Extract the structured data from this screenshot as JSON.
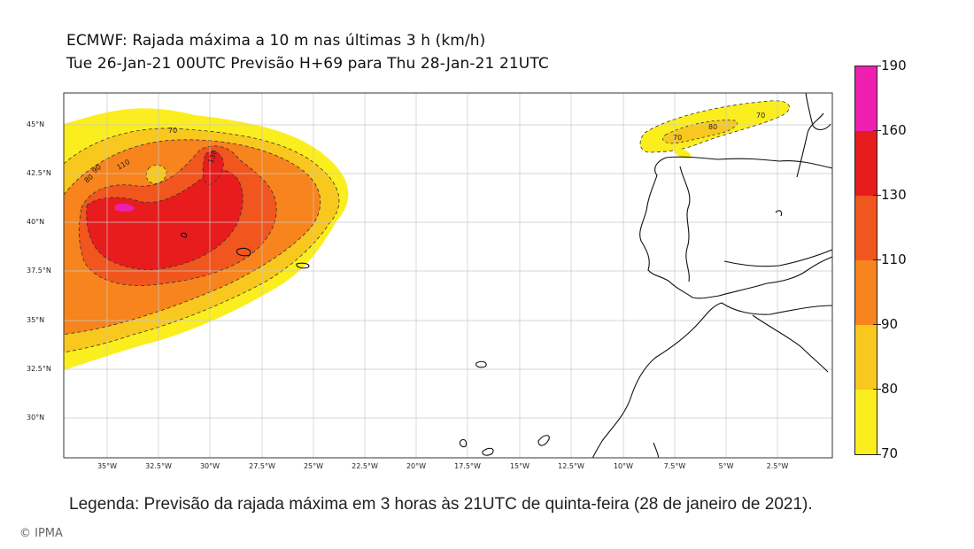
{
  "title": {
    "line1": "ECMWF: Rajada máxima a 10 m nas últimas 3 h (km/h)",
    "line2": "Tue 26-Jan-21 00UTC Previsão H+69 para Thu 28-Jan-21 21UTC"
  },
  "map": {
    "lat_labels": [
      "45°N",
      "42.5°N",
      "40°N",
      "37.5°N",
      "35°N",
      "32.5°N",
      "30°N"
    ],
    "lon_labels": [
      "35°W",
      "32.5°W",
      "30°W",
      "27.5°W",
      "25°W",
      "22.5°W",
      "20°W",
      "17.5°W",
      "15°W",
      "12.5°W",
      "10°W",
      "7.5°W",
      "5°W",
      "2.5°W"
    ],
    "contour_labels": [
      "70",
      "80",
      "90",
      "110",
      "130",
      "70",
      "80",
      "70"
    ]
  },
  "colorbar": {
    "levels": [
      "190",
      "160",
      "130",
      "110",
      "90",
      "80",
      "70"
    ],
    "colors": [
      "#ee1fb0",
      "#e81c1c",
      "#f0561e",
      "#f7841c",
      "#f8c81e",
      "#fbee1e"
    ]
  },
  "caption": "Legenda: Previsão da rajada máxima em 3 horas às 21UTC de quinta-feira (28 de janeiro de 2021).",
  "credit": "© IPMA"
}
